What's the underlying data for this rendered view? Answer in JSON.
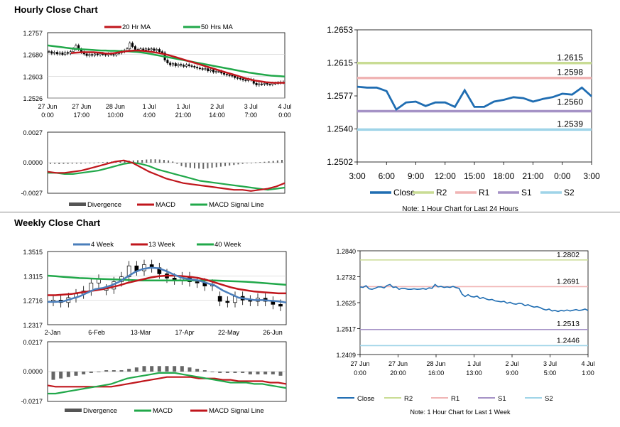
{
  "hourly": {
    "section_title": "Hourly Close Chart",
    "price_chart": {
      "type": "candlestick",
      "title": "Hourly Close Chart",
      "legend": [
        "20 Hr MA",
        "50 Hrs MA"
      ],
      "colors": {
        "ma20": "#c0161c",
        "ma50": "#21a84a",
        "candle": "#000000"
      },
      "y_ticks": [
        "1.2757",
        "1.2680",
        "1.2603",
        "1.2526"
      ],
      "ylim": [
        1.2526,
        1.2757
      ],
      "x_ticks": [
        [
          "27 Jun",
          "0:00"
        ],
        [
          "27 Jun",
          "17:00"
        ],
        [
          "28 Jun",
          "10:00"
        ],
        [
          "1 Jul",
          "4:00"
        ],
        [
          "1 Jul",
          "21:00"
        ],
        [
          "2 Jul",
          "14:00"
        ],
        [
          "3 Jul",
          "7:00"
        ],
        [
          "4 Jul",
          "0:00"
        ]
      ],
      "close": [
        1.269,
        1.2684,
        1.2688,
        1.2682,
        1.2686,
        1.268,
        1.2687,
        1.2684,
        1.269,
        1.27,
        1.2712,
        1.2698,
        1.2688,
        1.2682,
        1.2676,
        1.268,
        1.2677,
        1.2682,
        1.2679,
        1.2683,
        1.268,
        1.2678,
        1.2682,
        1.268,
        1.2678,
        1.2683,
        1.2686,
        1.269,
        1.2694,
        1.27,
        1.272,
        1.2708,
        1.2698,
        1.2694,
        1.27,
        1.2696,
        1.27,
        1.2697,
        1.27,
        1.2694,
        1.2698,
        1.269,
        1.2686,
        1.266,
        1.265,
        1.2643,
        1.2648,
        1.264,
        1.2645,
        1.2642,
        1.2638,
        1.2644,
        1.264,
        1.2638,
        1.2635,
        1.2632,
        1.263,
        1.2628,
        1.263,
        1.2622,
        1.2626,
        1.2618,
        1.262,
        1.262,
        1.2614,
        1.261,
        1.2608,
        1.2606,
        1.2604,
        1.2598,
        1.2596,
        1.2594,
        1.259,
        1.2588,
        1.2592,
        1.259,
        1.2578,
        1.2572,
        1.2576,
        1.2575,
        1.2578,
        1.2575,
        1.2574,
        1.2578,
        1.2578,
        1.258,
        1.2582,
        1.2581
      ],
      "ma20": [
        1.2685,
        1.2686,
        1.2687,
        1.2688,
        1.2688,
        1.2688,
        1.2688,
        1.2687,
        1.2686,
        1.2684,
        1.2683,
        1.2684,
        1.2686,
        1.2688,
        1.269,
        1.2692,
        1.2693,
        1.2694,
        1.2694,
        1.2693,
        1.2692,
        1.269,
        1.2688,
        1.2686,
        1.2684,
        1.2681,
        1.2678,
        1.2674,
        1.267,
        1.2666,
        1.2662,
        1.2658,
        1.2654,
        1.265,
        1.2646,
        1.2642,
        1.2638,
        1.2634,
        1.263,
        1.2626,
        1.2622,
        1.2618,
        1.2614,
        1.261,
        1.2606,
        1.2602,
        1.2598,
        1.2594,
        1.2591,
        1.2588,
        1.2586,
        1.2584,
        1.2582,
        1.2581,
        1.258,
        1.258,
        1.258,
        1.258
      ],
      "ma50": [
        1.2712,
        1.271,
        1.2708,
        1.2706,
        1.2704,
        1.2702,
        1.27,
        1.2699,
        1.2698,
        1.2697,
        1.2696,
        1.2695,
        1.2694,
        1.2694,
        1.2693,
        1.2693,
        1.2692,
        1.2692,
        1.2691,
        1.269,
        1.2689,
        1.2687,
        1.2685,
        1.2682,
        1.2679,
        1.2676,
        1.2673,
        1.267,
        1.2667,
        1.2664,
        1.2661,
        1.2658,
        1.2655,
        1.2652,
        1.2649,
        1.2646,
        1.2643,
        1.264,
        1.2637,
        1.2634,
        1.2631,
        1.2628,
        1.2625,
        1.2622,
        1.2619,
        1.2616,
        1.2614,
        1.2611,
        1.2609,
        1.2607,
        1.2605,
        1.2604,
        1.2603,
        1.2602
      ]
    },
    "macd_chart": {
      "type": "macd",
      "legend": [
        "Divergence",
        "MACD",
        "MACD Signal Line"
      ],
      "colors": {
        "divergence": "#555555",
        "macd": "#c0161c",
        "signal": "#21a84a"
      },
      "y_ticks": [
        "0.0027",
        "0.0000",
        "-0.0027"
      ],
      "ylim": [
        -0.0027,
        0.0027
      ],
      "divergence": [
        -0.0001,
        -0.0001,
        -0.00012,
        -0.0001,
        -0.0001,
        -8e-05,
        -8e-05,
        -8e-05,
        -5e-05,
        -4e-05,
        0.0,
        3e-05,
        5e-05,
        7e-05,
        0.0001,
        0.00012,
        0.00014,
        0.00015,
        0.00018,
        0.0002,
        0.00022,
        0.00025,
        0.00028,
        0.0003,
        0.0003,
        0.00028,
        0.00025,
        0.0002,
        0.0001,
        -0.0001,
        -0.0003,
        -0.0004,
        -0.00045,
        -0.0005,
        -0.00052,
        -0.00055,
        -0.0005,
        -0.00045,
        -0.0004,
        -0.00035,
        -0.0003,
        -0.00025,
        -0.0002,
        -0.00015,
        -0.0001,
        -5e-05,
        0.0,
        3e-05,
        5e-05,
        8e-05,
        0.00012,
        0.00015,
        0.0002,
        0.00025
      ],
      "macd": [
        -0.0008,
        -0.0009,
        -0.0009,
        -0.0008,
        -0.0007,
        -0.0005,
        -0.0003,
        -0.0001,
        0.0001,
        0.0002,
        0.0,
        -0.0004,
        -0.0008,
        -0.0011,
        -0.0014,
        -0.0016,
        -0.0018,
        -0.0019,
        -0.002,
        -0.0021,
        -0.0022,
        -0.0023,
        -0.0024,
        -0.0024,
        -0.0025,
        -0.0024,
        -0.0023,
        -0.0021,
        -0.0018
      ],
      "signal": [
        -0.0009,
        -0.0009,
        -0.001,
        -0.001,
        -0.0009,
        -0.0008,
        -0.0007,
        -0.0005,
        -0.0003,
        -0.0001,
        0.0,
        -0.0001,
        -0.0003,
        -0.0006,
        -0.0008,
        -0.001,
        -0.0012,
        -0.0014,
        -0.0016,
        -0.0017,
        -0.0018,
        -0.0019,
        -0.002,
        -0.0021,
        -0.0022,
        -0.0023,
        -0.0024,
        -0.0023,
        -0.0022
      ]
    },
    "pivot_chart": {
      "type": "line",
      "y_ticks": [
        "1.2653",
        "1.2615",
        "1.2577",
        "1.2540",
        "1.2502"
      ],
      "ylim": [
        1.2502,
        1.2653
      ],
      "x_ticks": [
        "3:00",
        "6:00",
        "9:00",
        "12:00",
        "15:00",
        "18:00",
        "21:00",
        "0:00",
        "3:00"
      ],
      "x": [
        3,
        4,
        5,
        6,
        7,
        8,
        9,
        10,
        11,
        12,
        13,
        14,
        15,
        16,
        17,
        18,
        19,
        20,
        21,
        22,
        23,
        24,
        25,
        26,
        27
      ],
      "close": [
        1.2588,
        1.2587,
        1.2587,
        1.2583,
        1.2562,
        1.257,
        1.2571,
        1.2566,
        1.257,
        1.257,
        1.2565,
        1.2584,
        1.2565,
        1.2565,
        1.2571,
        1.2573,
        1.2576,
        1.2575,
        1.2571,
        1.2574,
        1.2576,
        1.258,
        1.2579,
        1.2587,
        1.2577
      ],
      "levels": {
        "R2": 1.2615,
        "R1": 1.2598,
        "S1": 1.256,
        "S2": 1.2539
      },
      "level_labels": [
        "1.2615",
        "1.2598",
        "1.2560",
        "1.2539"
      ],
      "legend": [
        "Close",
        "R2",
        "R1",
        "S1",
        "S2"
      ],
      "colors": {
        "close": "#1f6db2",
        "R2": "#c9dc94",
        "R1": "#f0b4b4",
        "S1": "#a592c6",
        "S2": "#9fd4e8"
      },
      "note": "Note: 1 Hour Chart for Last 24 Hours"
    }
  },
  "weekly": {
    "section_title": "Weekly Close Chart",
    "price_chart": {
      "type": "candlestick",
      "legend": [
        "4 Week",
        "13 Week",
        "40 Week"
      ],
      "colors": {
        "ma4": "#4a7ebb",
        "ma13": "#c0161c",
        "ma40": "#21a84a",
        "candle": "#000000"
      },
      "y_ticks": [
        "1.3515",
        "1.3115",
        "1.2716",
        "1.2317"
      ],
      "ylim": [
        1.2317,
        1.3515
      ],
      "x_ticks": [
        "2-Jan",
        "6-Feb",
        "13-Mar",
        "17-Apr",
        "22-May",
        "26-Jun"
      ],
      "open": [
        1.27,
        1.272,
        1.268,
        1.276,
        1.282,
        1.287,
        1.3,
        1.288,
        1.29,
        1.302,
        1.31,
        1.328,
        1.32,
        1.33,
        1.325,
        1.315,
        1.308,
        1.305,
        1.31,
        1.302,
        1.3,
        1.295,
        1.278,
        1.27,
        1.268,
        1.278,
        1.272,
        1.27,
        1.275,
        1.27,
        1.265
      ],
      "close": [
        1.272,
        1.268,
        1.276,
        1.282,
        1.287,
        1.3,
        1.306,
        1.29,
        1.302,
        1.31,
        1.328,
        1.32,
        1.33,
        1.325,
        1.315,
        1.308,
        1.305,
        1.31,
        1.302,
        1.3,
        1.295,
        1.298,
        1.27,
        1.268,
        1.278,
        1.272,
        1.27,
        1.275,
        1.27,
        1.265,
        1.262
      ],
      "ma4": [
        1.269,
        1.269,
        1.27,
        1.274,
        1.278,
        1.284,
        1.29,
        1.292,
        1.296,
        1.302,
        1.31,
        1.318,
        1.323,
        1.325,
        1.324,
        1.319,
        1.313,
        1.308,
        1.306,
        1.304,
        1.3,
        1.296,
        1.288,
        1.282,
        1.276,
        1.274,
        1.272,
        1.272,
        1.271,
        1.27,
        1.268
      ],
      "ma13": [
        1.28,
        1.28,
        1.281,
        1.282,
        1.284,
        1.286,
        1.288,
        1.29,
        1.293,
        1.296,
        1.3,
        1.303,
        1.306,
        1.309,
        1.311,
        1.312,
        1.312,
        1.311,
        1.31,
        1.308,
        1.305,
        1.301,
        1.297,
        1.293,
        1.29,
        1.288,
        1.286,
        1.285,
        1.284,
        1.283,
        1.283
      ],
      "ma40": [
        1.312,
        1.311,
        1.31,
        1.309,
        1.308,
        1.3075,
        1.307,
        1.3065,
        1.306,
        1.3055,
        1.305,
        1.3045,
        1.304,
        1.304,
        1.304,
        1.304,
        1.304,
        1.304,
        1.304,
        1.304,
        1.304,
        1.304,
        1.3035,
        1.303,
        1.3025,
        1.302,
        1.301,
        1.3,
        1.299,
        1.298,
        1.297
      ]
    },
    "macd_chart": {
      "type": "macd",
      "legend": [
        "Divergence",
        "MACD",
        "MACD Signal Line"
      ],
      "colors": {
        "divergence": "#555555",
        "macd": "#21a84a",
        "signal": "#c0161c"
      },
      "y_ticks": [
        "0.0217",
        "0.0000",
        "-0.0217"
      ],
      "ylim": [
        -0.0217,
        0.0217
      ],
      "divergence": [
        -0.006,
        -0.005,
        -0.004,
        -0.003,
        -0.002,
        -0.001,
        0.0,
        0.001,
        0.001,
        0.001,
        0.002,
        0.003,
        0.004,
        0.004,
        0.004,
        0.004,
        0.004,
        0.004,
        0.003,
        0.002,
        0.001,
        0.0,
        -0.001,
        -0.001,
        -0.001,
        -0.001,
        -0.002,
        -0.002,
        -0.002,
        -0.002,
        -0.003
      ],
      "macd": [
        -0.016,
        -0.016,
        -0.015,
        -0.014,
        -0.013,
        -0.012,
        -0.011,
        -0.01,
        -0.009,
        -0.007,
        -0.005,
        -0.004,
        -0.003,
        -0.002,
        -0.001,
        -0.001,
        -0.001,
        -0.002,
        -0.003,
        -0.004,
        -0.005,
        -0.006,
        -0.007,
        -0.008,
        -0.008,
        -0.008,
        -0.009,
        -0.009,
        -0.01,
        -0.011,
        -0.012
      ],
      "signal": [
        -0.01,
        -0.011,
        -0.011,
        -0.011,
        -0.011,
        -0.011,
        -0.011,
        -0.011,
        -0.011,
        -0.01,
        -0.009,
        -0.008,
        -0.007,
        -0.006,
        -0.005,
        -0.004,
        -0.004,
        -0.004,
        -0.004,
        -0.005,
        -0.005,
        -0.005,
        -0.006,
        -0.006,
        -0.007,
        -0.007,
        -0.007,
        -0.007,
        -0.008,
        -0.008,
        -0.009
      ]
    },
    "pivot_chart": {
      "type": "line",
      "y_ticks": [
        "1.2840",
        "1.2732",
        "1.2625",
        "1.2517",
        "1.2409"
      ],
      "ylim": [
        1.2409,
        1.284
      ],
      "x_ticks": [
        [
          "27 Jun",
          "0:00"
        ],
        [
          "27 Jun",
          "20:00"
        ],
        [
          "28 Jun",
          "16:00"
        ],
        [
          "1 Jul",
          "13:00"
        ],
        [
          "2 Jul",
          "9:00"
        ],
        [
          "3 Jul",
          "5:00"
        ],
        [
          "4 Jul",
          "1:00"
        ]
      ],
      "close": [
        1.269,
        1.2688,
        1.2695,
        1.2682,
        1.268,
        1.2684,
        1.269,
        1.269,
        1.2686,
        1.2696,
        1.27,
        1.2688,
        1.269,
        1.268,
        1.2684,
        1.2683,
        1.268,
        1.268,
        1.2682,
        1.268,
        1.2681,
        1.2683,
        1.268,
        1.2686,
        1.2684,
        1.27,
        1.269,
        1.2692,
        1.2688,
        1.269,
        1.2688,
        1.2692,
        1.2687,
        1.2684,
        1.266,
        1.265,
        1.2658,
        1.265,
        1.2648,
        1.2652,
        1.2642,
        1.2646,
        1.264,
        1.2636,
        1.2638,
        1.2632,
        1.263,
        1.2628,
        1.263,
        1.2622,
        1.2626,
        1.262,
        1.2618,
        1.2622,
        1.262,
        1.2612,
        1.2616,
        1.261,
        1.2606,
        1.2608,
        1.2604,
        1.2598,
        1.2594,
        1.2598,
        1.259,
        1.2592,
        1.2588,
        1.2592,
        1.259,
        1.2594,
        1.259,
        1.2593,
        1.2596,
        1.2592,
        1.2594,
        1.2598,
        1.2592
      ],
      "levels": {
        "R2": 1.2802,
        "R1": 1.2691,
        "S1": 1.2513,
        "S2": 1.2446
      },
      "level_labels": [
        "1.2802",
        "1.2691",
        "1.2513",
        "1.2446"
      ],
      "legend": [
        "Close",
        "R2",
        "R1",
        "S1",
        "S2"
      ],
      "colors": {
        "close": "#1f6db2",
        "R2": "#c9dc94",
        "R1": "#f0b4b4",
        "S1": "#a592c6",
        "S2": "#9fd4e8"
      },
      "note": "Note: 1 Hour Chart for Last 1 Week"
    }
  }
}
